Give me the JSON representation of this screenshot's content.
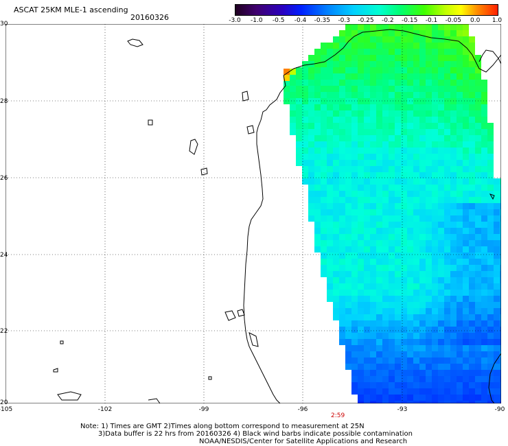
{
  "header": {
    "title": "ASCAT 25KM MLE-1 ascending",
    "date": "20160326"
  },
  "colorbar": {
    "labels": [
      "-3.0",
      "-1.0",
      "-0.5",
      "-0.4",
      "-0.35",
      "-0.3",
      "-0.25",
      "-0.2",
      "-0.15",
      "-0.1",
      "-0.05",
      "0.0",
      "1.0"
    ],
    "colors": [
      "#2a0030",
      "#4b0080",
      "#2020d0",
      "#0050ff",
      "#0090ff",
      "#00d8ff",
      "#00ffd0",
      "#00ff80",
      "#20ff20",
      "#a0ff00",
      "#ffff00",
      "#ffa000",
      "#ff2000"
    ]
  },
  "axes": {
    "lat_labels": [
      "30",
      "28",
      "26",
      "24",
      "22",
      "20"
    ],
    "lon_labels": [
      "-105",
      "-102",
      "-99",
      "-96",
      "-93",
      "-90"
    ],
    "time_label": "2:59"
  },
  "notes": {
    "line1": "Note: 1) Times are GMT 2)Times along bottom correspond to measurement at 25N",
    "line2": "3)Data buffer is 22 hrs from 20160326 4) Black wind barbs indicate possible contamination",
    "line3": "NOAA/NESDIS/Center for Satellite Applications and Research"
  },
  "colors": {
    "time_label": "#cc0000",
    "coastline": "#000000",
    "grid": "#000000"
  }
}
